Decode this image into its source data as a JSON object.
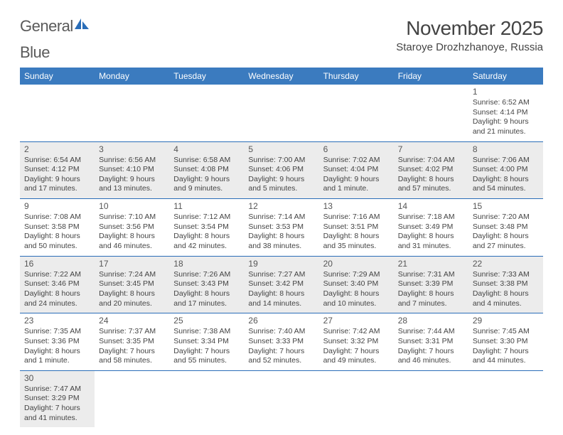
{
  "brand": {
    "part1": "General",
    "part2": "Blue"
  },
  "title": "November 2025",
  "location": "Staroye Drozhzhanoye, Russia",
  "day_headers": [
    "Sunday",
    "Monday",
    "Tuesday",
    "Wednesday",
    "Thursday",
    "Friday",
    "Saturday"
  ],
  "colors": {
    "header_bg": "#3b7bbf",
    "header_text": "#ffffff",
    "rule": "#2a6db8",
    "shade_bg": "#ececec",
    "text": "#444444",
    "logo_gray": "#5a5a5a",
    "logo_blue": "#2a6db8"
  },
  "weeks": [
    {
      "shade": false,
      "days": [
        null,
        null,
        null,
        null,
        null,
        null,
        {
          "n": "1",
          "sr": "Sunrise: 6:52 AM",
          "ss": "Sunset: 4:14 PM",
          "d1": "Daylight: 9 hours",
          "d2": "and 21 minutes."
        }
      ]
    },
    {
      "shade": true,
      "days": [
        {
          "n": "2",
          "sr": "Sunrise: 6:54 AM",
          "ss": "Sunset: 4:12 PM",
          "d1": "Daylight: 9 hours",
          "d2": "and 17 minutes."
        },
        {
          "n": "3",
          "sr": "Sunrise: 6:56 AM",
          "ss": "Sunset: 4:10 PM",
          "d1": "Daylight: 9 hours",
          "d2": "and 13 minutes."
        },
        {
          "n": "4",
          "sr": "Sunrise: 6:58 AM",
          "ss": "Sunset: 4:08 PM",
          "d1": "Daylight: 9 hours",
          "d2": "and 9 minutes."
        },
        {
          "n": "5",
          "sr": "Sunrise: 7:00 AM",
          "ss": "Sunset: 4:06 PM",
          "d1": "Daylight: 9 hours",
          "d2": "and 5 minutes."
        },
        {
          "n": "6",
          "sr": "Sunrise: 7:02 AM",
          "ss": "Sunset: 4:04 PM",
          "d1": "Daylight: 9 hours",
          "d2": "and 1 minute."
        },
        {
          "n": "7",
          "sr": "Sunrise: 7:04 AM",
          "ss": "Sunset: 4:02 PM",
          "d1": "Daylight: 8 hours",
          "d2": "and 57 minutes."
        },
        {
          "n": "8",
          "sr": "Sunrise: 7:06 AM",
          "ss": "Sunset: 4:00 PM",
          "d1": "Daylight: 8 hours",
          "d2": "and 54 minutes."
        }
      ]
    },
    {
      "shade": false,
      "days": [
        {
          "n": "9",
          "sr": "Sunrise: 7:08 AM",
          "ss": "Sunset: 3:58 PM",
          "d1": "Daylight: 8 hours",
          "d2": "and 50 minutes."
        },
        {
          "n": "10",
          "sr": "Sunrise: 7:10 AM",
          "ss": "Sunset: 3:56 PM",
          "d1": "Daylight: 8 hours",
          "d2": "and 46 minutes."
        },
        {
          "n": "11",
          "sr": "Sunrise: 7:12 AM",
          "ss": "Sunset: 3:54 PM",
          "d1": "Daylight: 8 hours",
          "d2": "and 42 minutes."
        },
        {
          "n": "12",
          "sr": "Sunrise: 7:14 AM",
          "ss": "Sunset: 3:53 PM",
          "d1": "Daylight: 8 hours",
          "d2": "and 38 minutes."
        },
        {
          "n": "13",
          "sr": "Sunrise: 7:16 AM",
          "ss": "Sunset: 3:51 PM",
          "d1": "Daylight: 8 hours",
          "d2": "and 35 minutes."
        },
        {
          "n": "14",
          "sr": "Sunrise: 7:18 AM",
          "ss": "Sunset: 3:49 PM",
          "d1": "Daylight: 8 hours",
          "d2": "and 31 minutes."
        },
        {
          "n": "15",
          "sr": "Sunrise: 7:20 AM",
          "ss": "Sunset: 3:48 PM",
          "d1": "Daylight: 8 hours",
          "d2": "and 27 minutes."
        }
      ]
    },
    {
      "shade": true,
      "days": [
        {
          "n": "16",
          "sr": "Sunrise: 7:22 AM",
          "ss": "Sunset: 3:46 PM",
          "d1": "Daylight: 8 hours",
          "d2": "and 24 minutes."
        },
        {
          "n": "17",
          "sr": "Sunrise: 7:24 AM",
          "ss": "Sunset: 3:45 PM",
          "d1": "Daylight: 8 hours",
          "d2": "and 20 minutes."
        },
        {
          "n": "18",
          "sr": "Sunrise: 7:26 AM",
          "ss": "Sunset: 3:43 PM",
          "d1": "Daylight: 8 hours",
          "d2": "and 17 minutes."
        },
        {
          "n": "19",
          "sr": "Sunrise: 7:27 AM",
          "ss": "Sunset: 3:42 PM",
          "d1": "Daylight: 8 hours",
          "d2": "and 14 minutes."
        },
        {
          "n": "20",
          "sr": "Sunrise: 7:29 AM",
          "ss": "Sunset: 3:40 PM",
          "d1": "Daylight: 8 hours",
          "d2": "and 10 minutes."
        },
        {
          "n": "21",
          "sr": "Sunrise: 7:31 AM",
          "ss": "Sunset: 3:39 PM",
          "d1": "Daylight: 8 hours",
          "d2": "and 7 minutes."
        },
        {
          "n": "22",
          "sr": "Sunrise: 7:33 AM",
          "ss": "Sunset: 3:38 PM",
          "d1": "Daylight: 8 hours",
          "d2": "and 4 minutes."
        }
      ]
    },
    {
      "shade": false,
      "days": [
        {
          "n": "23",
          "sr": "Sunrise: 7:35 AM",
          "ss": "Sunset: 3:36 PM",
          "d1": "Daylight: 8 hours",
          "d2": "and 1 minute."
        },
        {
          "n": "24",
          "sr": "Sunrise: 7:37 AM",
          "ss": "Sunset: 3:35 PM",
          "d1": "Daylight: 7 hours",
          "d2": "and 58 minutes."
        },
        {
          "n": "25",
          "sr": "Sunrise: 7:38 AM",
          "ss": "Sunset: 3:34 PM",
          "d1": "Daylight: 7 hours",
          "d2": "and 55 minutes."
        },
        {
          "n": "26",
          "sr": "Sunrise: 7:40 AM",
          "ss": "Sunset: 3:33 PM",
          "d1": "Daylight: 7 hours",
          "d2": "and 52 minutes."
        },
        {
          "n": "27",
          "sr": "Sunrise: 7:42 AM",
          "ss": "Sunset: 3:32 PM",
          "d1": "Daylight: 7 hours",
          "d2": "and 49 minutes."
        },
        {
          "n": "28",
          "sr": "Sunrise: 7:44 AM",
          "ss": "Sunset: 3:31 PM",
          "d1": "Daylight: 7 hours",
          "d2": "and 46 minutes."
        },
        {
          "n": "29",
          "sr": "Sunrise: 7:45 AM",
          "ss": "Sunset: 3:30 PM",
          "d1": "Daylight: 7 hours",
          "d2": "and 44 minutes."
        }
      ]
    },
    {
      "shade": true,
      "days": [
        {
          "n": "30",
          "sr": "Sunrise: 7:47 AM",
          "ss": "Sunset: 3:29 PM",
          "d1": "Daylight: 7 hours",
          "d2": "and 41 minutes."
        },
        null,
        null,
        null,
        null,
        null,
        null
      ]
    }
  ]
}
